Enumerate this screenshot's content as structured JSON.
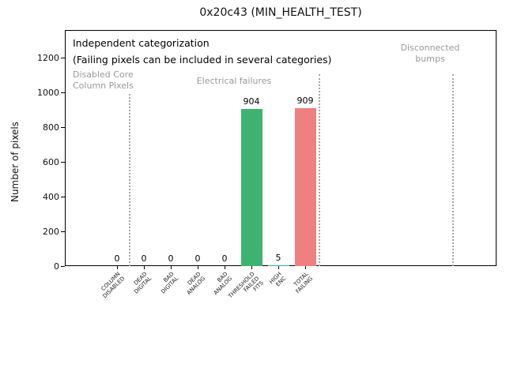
{
  "chart_data": {
    "type": "bar",
    "title": "0x20c43 (MIN_HEALTH_TEST)",
    "ylabel": "Number of pixels",
    "ylim": [
      0,
      1360
    ],
    "yticks": [
      0,
      200,
      400,
      600,
      800,
      1000,
      1200
    ],
    "grid": false,
    "legend": "none",
    "categories": [
      "COLUMN\nDISABLED",
      "DEAD\nDIGITAL",
      "BAD\nDIGITAL",
      "DEAD\nANALOG",
      "BAD\nANALOG",
      "THRESHOLD\nFAILED\nFITS",
      "HIGH\nENC",
      "TOTAL\nFAILING"
    ],
    "values": [
      0,
      0,
      0,
      0,
      0,
      904,
      5,
      909
    ],
    "bar_colors": [
      "#3cb371",
      "#3cb371",
      "#3cb371",
      "#3cb371",
      "#3cb371",
      "#3cb371",
      "#3cb371",
      "#f08080"
    ],
    "bar_value_labels": [
      "0",
      "0",
      "0",
      "0",
      "0",
      "904",
      "5",
      "909"
    ],
    "annotation_line1": "Independent categorization",
    "annotation_line2": "(Failing pixels can be included in several categories)",
    "group_labels": [
      {
        "text": "Disabled Core\nColumn Pixels"
      },
      {
        "text": "Electrical failures"
      },
      {
        "text": "Disconnected\nbumps"
      }
    ],
    "colors": {
      "bar_green": "#3cb371",
      "bar_red": "#f08080",
      "group_label_gray": "#999999",
      "separator_gray": "#a6a6a6",
      "axis": "#000000"
    }
  }
}
